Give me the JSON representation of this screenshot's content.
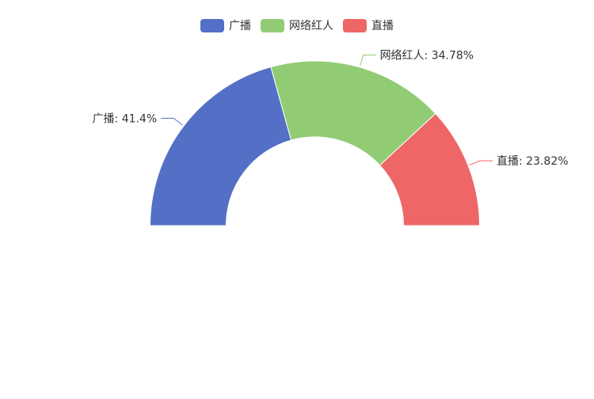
{
  "chart_data": {
    "type": "pie",
    "variant": "half-donut",
    "title": "",
    "legend_position": "top-center",
    "slices": [
      {
        "name": "广播",
        "value": 41.4,
        "label": "广播: 41.4%",
        "color": "#5470c6"
      },
      {
        "name": "网络红人",
        "value": 34.78,
        "label": "网络红人: 34.78%",
        "color": "#91cc75"
      },
      {
        "name": "直播",
        "value": 23.82,
        "label": "直播: 23.82%",
        "color": "#ee6666"
      }
    ]
  }
}
